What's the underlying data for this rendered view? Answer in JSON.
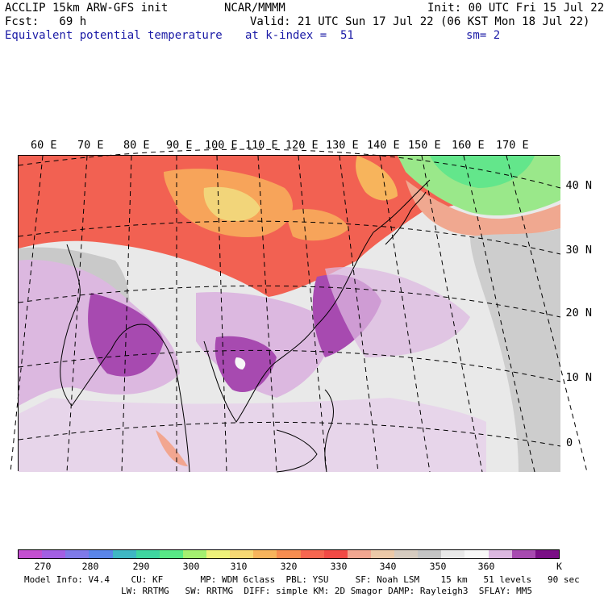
{
  "header": {
    "model": "ACCLIP 15km ARW-GFS init",
    "org": "NCAR/MMMM",
    "init": "Init: 00 UTC Fri 15 Jul 22",
    "fcst": "Fcst:   69 h",
    "valid": "Valid: 21 UTC Sun 17 Jul 22 (06 KST Mon 18 Jul 22)",
    "field": "Equivalent potential temperature",
    "level": "at k-index =  51",
    "smooth": "sm= 2"
  },
  "longitude_labels": [
    "60 E",
    "70 E",
    "80 E",
    "90 E",
    "100 E",
    "110 E",
    "120 E",
    "130 E",
    "140 E",
    "150 E",
    "160 E",
    "170 E"
  ],
  "latitude_labels": [
    "40 N",
    "30 N",
    "20 N",
    "10 N",
    "0"
  ],
  "colorbar": {
    "colors": [
      "#c44fd1",
      "#a35fe3",
      "#7f7ae8",
      "#5a85e8",
      "#3fb7c3",
      "#3fd6a0",
      "#58e886",
      "#a4f070",
      "#eef27a",
      "#f7d873",
      "#f7b45c",
      "#f78d50",
      "#f76650",
      "#f24a45",
      "#f2a690",
      "#ecc9a8",
      "#d6cbbf",
      "#c4c4c4",
      "#e8e8e8",
      "#f7f7f7",
      "#dcb8e0",
      "#a74ab0",
      "#7a0f86"
    ],
    "ticks": [
      "270",
      "280",
      "290",
      "300",
      "310",
      "320",
      "330",
      "340",
      "350",
      "360"
    ],
    "unit": "K"
  },
  "footer": {
    "line1": "Model Info: V4.4    CU: KF       MP: WDM 6class  PBL: YSU     SF: Noah LSM    15 km   51 levels   90 sec",
    "line2": "LW: RRTMG   SW: RRTMG  DIFF: simple KM: 2D Smagor DAMP: Rayleigh3  SFLAY: MM5"
  }
}
